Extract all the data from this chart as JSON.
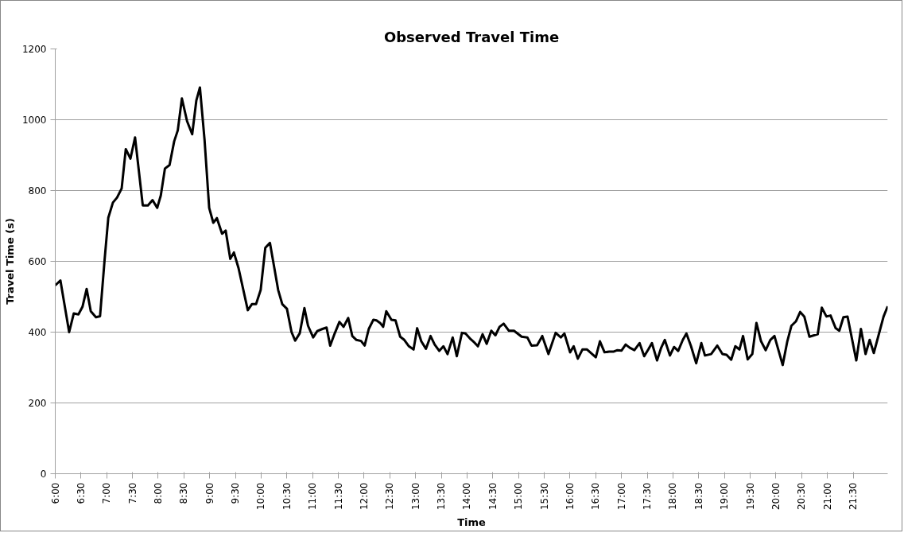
{
  "chart_data": {
    "type": "line",
    "title": "Observed Travel Time",
    "xlabel": "Time",
    "ylabel": "Travel Time (s)",
    "x": [
      6.0,
      6.1,
      6.27,
      6.36,
      6.45,
      6.53,
      6.61,
      6.69,
      6.79,
      6.87,
      6.96,
      7.03,
      7.12,
      7.2,
      7.29,
      7.37,
      7.46,
      7.55,
      7.7,
      7.8,
      7.89,
      7.98,
      8.05,
      8.13,
      8.22,
      8.31,
      8.38,
      8.46,
      8.56,
      8.66,
      8.74,
      8.81,
      8.9,
      8.99,
      9.07,
      9.14,
      9.24,
      9.31,
      9.4,
      9.47,
      9.56,
      9.74,
      9.82,
      9.9,
      9.99,
      10.08,
      10.17,
      10.33,
      10.41,
      10.5,
      10.59,
      10.66,
      10.75,
      10.84,
      10.91,
      11.01,
      11.09,
      11.19,
      11.27,
      11.34,
      11.43,
      11.52,
      11.6,
      11.69,
      11.77,
      11.85,
      11.94,
      12.01,
      12.09,
      12.18,
      12.24,
      12.31,
      12.37,
      12.43,
      12.53,
      12.61,
      12.7,
      12.78,
      12.87,
      12.96,
      13.03,
      13.11,
      13.2,
      13.29,
      13.37,
      13.46,
      13.54,
      13.62,
      13.72,
      13.8,
      13.9,
      13.97,
      14.07,
      14.14,
      14.21,
      14.3,
      14.38,
      14.47,
      14.55,
      14.63,
      14.71,
      14.81,
      14.91,
      15.06,
      15.17,
      15.25,
      15.36,
      15.46,
      15.58,
      15.72,
      15.82,
      15.89,
      16.0,
      16.07,
      16.15,
      16.24,
      16.33,
      16.5,
      16.58,
      16.67,
      16.76,
      16.85,
      16.92,
      17.0,
      17.08,
      17.16,
      17.25,
      17.35,
      17.44,
      17.52,
      17.59,
      17.69,
      17.77,
      17.84,
      17.94,
      18.02,
      18.1,
      18.19,
      18.26,
      18.35,
      18.45,
      18.55,
      18.62,
      18.74,
      18.86,
      18.96,
      19.04,
      19.13,
      19.21,
      19.29,
      19.36,
      19.45,
      19.54,
      19.62,
      19.71,
      19.8,
      19.89,
      19.97,
      20.13,
      20.22,
      20.3,
      20.39,
      20.47,
      20.55,
      20.65,
      20.81,
      20.89,
      20.98,
      21.06,
      21.16,
      21.23,
      21.31,
      21.39,
      21.56,
      21.65,
      21.74,
      21.82,
      21.9,
      22.09,
      22.17
    ],
    "series": [
      {
        "color": "#000000",
        "values": [
          532,
          546,
          400,
          453,
          450,
          472,
          522,
          459,
          442,
          445,
          607,
          723,
          766,
          780,
          806,
          917,
          890,
          950,
          758,
          758,
          773,
          751,
          786,
          862,
          872,
          939,
          970,
          1060,
          996,
          959,
          1054,
          1091,
          943,
          751,
          709,
          722,
          678,
          687,
          607,
          625,
          581,
          462,
          479,
          479,
          519,
          638,
          652,
          519,
          479,
          466,
          400,
          376,
          397,
          468,
          418,
          385,
          403,
          409,
          413,
          362,
          397,
          429,
          415,
          440,
          389,
          378,
          375,
          362,
          409,
          435,
          433,
          426,
          415,
          459,
          435,
          433,
          387,
          378,
          360,
          351,
          411,
          374,
          353,
          389,
          365,
          347,
          360,
          338,
          385,
          332,
          398,
          396,
          380,
          371,
          360,
          394,
          367,
          404,
          391,
          415,
          424,
          404,
          404,
          387,
          385,
          362,
          363,
          389,
          338,
          398,
          385,
          396,
          343,
          360,
          325,
          351,
          351,
          329,
          374,
          343,
          345,
          345,
          349,
          348,
          365,
          356,
          349,
          369,
          332,
          351,
          369,
          320,
          356,
          378,
          334,
          358,
          347,
          378,
          396,
          360,
          312,
          369,
          334,
          338,
          362,
          338,
          336,
          322,
          360,
          351,
          389,
          323,
          338,
          426,
          374,
          349,
          378,
          389,
          307,
          374,
          418,
          431,
          457,
          444,
          387,
          394,
          469,
          444,
          447,
          411,
          404,
          442,
          444,
          320,
          409,
          338,
          378,
          341,
          444,
          473
        ]
      }
    ],
    "xlim": [
      6,
      22.17
    ],
    "xticks": [
      {
        "value": 6,
        "label": "6:00"
      },
      {
        "value": 6.5,
        "label": "6:30"
      },
      {
        "value": 7,
        "label": "7:00"
      },
      {
        "value": 7.5,
        "label": "7:30"
      },
      {
        "value": 8,
        "label": "8:00"
      },
      {
        "value": 8.5,
        "label": "8:30"
      },
      {
        "value": 9,
        "label": "9:00"
      },
      {
        "value": 9.5,
        "label": "9:30"
      },
      {
        "value": 10,
        "label": "10:00"
      },
      {
        "value": 10.5,
        "label": "10:30"
      },
      {
        "value": 11,
        "label": "11:00"
      },
      {
        "value": 11.5,
        "label": "11:30"
      },
      {
        "value": 12,
        "label": "12:00"
      },
      {
        "value": 12.5,
        "label": "12:30"
      },
      {
        "value": 13,
        "label": "13:00"
      },
      {
        "value": 13.5,
        "label": "13:30"
      },
      {
        "value": 14,
        "label": "14:00"
      },
      {
        "value": 14.5,
        "label": "14:30"
      },
      {
        "value": 15,
        "label": "15:00"
      },
      {
        "value": 15.5,
        "label": "15:30"
      },
      {
        "value": 16,
        "label": "16:00"
      },
      {
        "value": 16.5,
        "label": "16:30"
      },
      {
        "value": 17,
        "label": "17:00"
      },
      {
        "value": 17.5,
        "label": "17:30"
      },
      {
        "value": 18,
        "label": "18:00"
      },
      {
        "value": 18.5,
        "label": "18:30"
      },
      {
        "value": 19,
        "label": "19:00"
      },
      {
        "value": 19.5,
        "label": "19:30"
      },
      {
        "value": 20,
        "label": "20:00"
      },
      {
        "value": 20.5,
        "label": "20:30"
      },
      {
        "value": 21,
        "label": "21:00"
      },
      {
        "value": 21.5,
        "label": "21:30"
      }
    ],
    "ylim": [
      0,
      1200
    ],
    "yticks": [
      0,
      200,
      400,
      600,
      800,
      1000,
      1200
    ],
    "grid": "y",
    "marker": "none",
    "line_style": "solid"
  }
}
